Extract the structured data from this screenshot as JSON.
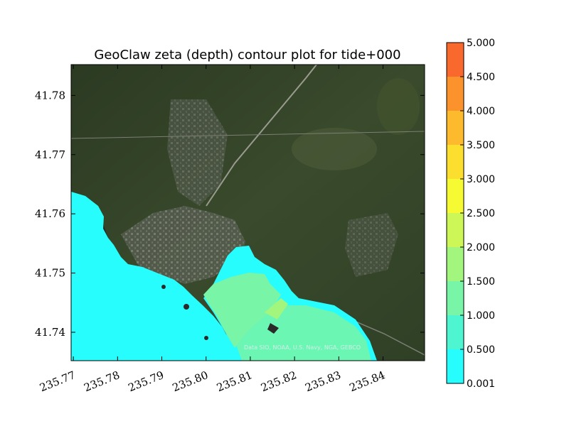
{
  "chart_data": {
    "type": "heatmap",
    "title": "GeoClaw zeta (depth) contour plot for tide+000",
    "xlabel": "",
    "ylabel": "",
    "x_ticks": [
      "235.77",
      "235.78",
      "235.79",
      "235.80",
      "235.81",
      "235.82",
      "235.83",
      "235.84"
    ],
    "x_tick_values": [
      235.77,
      235.78,
      235.79,
      235.8,
      235.81,
      235.82,
      235.83,
      235.84
    ],
    "y_ticks": [
      "41.78",
      "41.77",
      "41.76",
      "41.75",
      "41.74"
    ],
    "y_tick_values": [
      41.78,
      41.77,
      41.76,
      41.75,
      41.74
    ],
    "xlim": [
      235.7695,
      235.8494
    ],
    "ylim": [
      41.7352,
      41.7852
    ],
    "colorbar": {
      "levels": [
        0.001,
        0.5,
        1.0,
        1.5,
        2.0,
        2.5,
        3.0,
        3.5,
        4.0,
        4.5,
        5.0
      ],
      "labels": [
        "0.001",
        "0.500",
        "1.000",
        "1.500",
        "2.000",
        "2.500",
        "3.000",
        "3.500",
        "4.000",
        "4.500",
        "5.000"
      ],
      "colors": [
        "#28fdfd",
        "#4ef5d1",
        "#78f5a7",
        "#a2f67d",
        "#ccf757",
        "#f5fa32",
        "#fbde2e",
        "#fcba2c",
        "#fc922c",
        "#f9692d",
        "#f7402e"
      ]
    },
    "background": "satellite imagery",
    "credit": "Data SIO, NOAA, U.S. Navy, NGA, GEBCO"
  }
}
